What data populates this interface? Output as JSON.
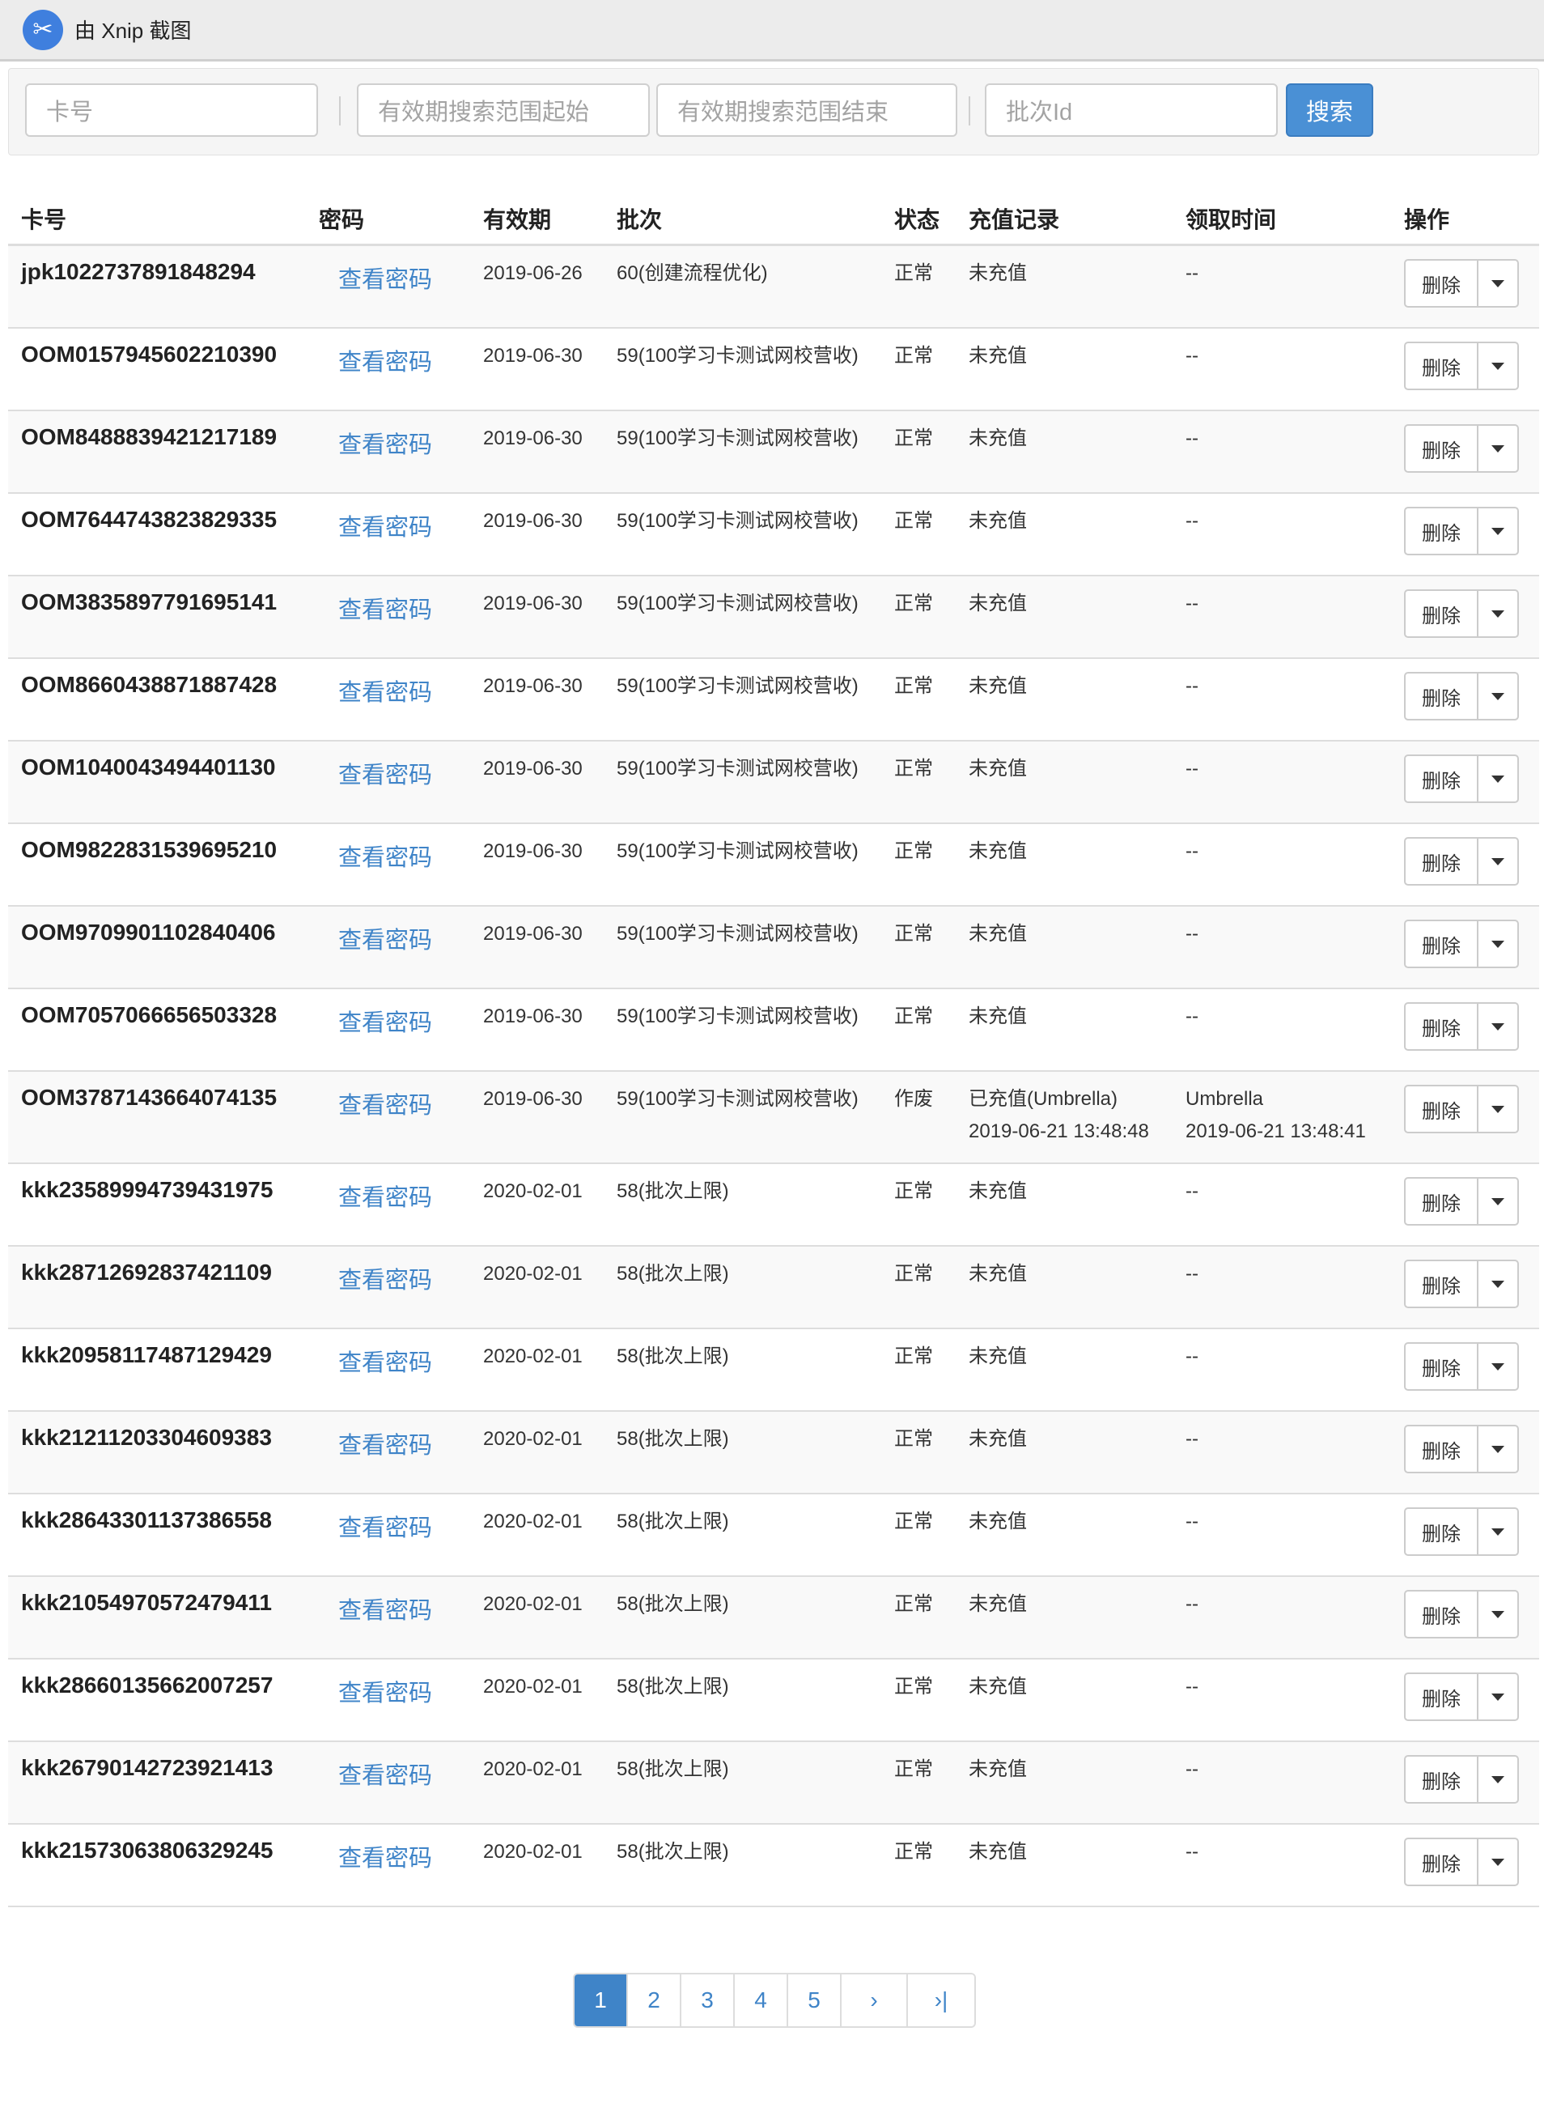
{
  "topbar": {
    "logo_glyph": "✂",
    "title": "由 Xnip 截图"
  },
  "search": {
    "card_placeholder": "卡号",
    "start_placeholder": "有效期搜索范围起始",
    "end_placeholder": "有效期搜索范围结束",
    "batch_placeholder": "批次Id",
    "button_label": "搜索"
  },
  "table": {
    "headers": [
      "卡号",
      "密码",
      "有效期",
      "批次",
      "状态",
      "充值记录",
      "领取时间",
      "操作"
    ],
    "view_password_label": "查看密码",
    "delete_label": "删除",
    "rows": [
      {
        "card": "jpk1022737891848294",
        "expiry": "2019-06-26",
        "batch": "60(创建流程优化)",
        "status": "正常",
        "charge": "未充值",
        "charge_time": "",
        "received": "--",
        "received_time": ""
      },
      {
        "card": "OOM0157945602210390",
        "expiry": "2019-06-30",
        "batch": "59(100学习卡测试网校营收)",
        "status": "正常",
        "charge": "未充值",
        "charge_time": "",
        "received": "--",
        "received_time": ""
      },
      {
        "card": "OOM8488839421217189",
        "expiry": "2019-06-30",
        "batch": "59(100学习卡测试网校营收)",
        "status": "正常",
        "charge": "未充值",
        "charge_time": "",
        "received": "--",
        "received_time": ""
      },
      {
        "card": "OOM7644743823829335",
        "expiry": "2019-06-30",
        "batch": "59(100学习卡测试网校营收)",
        "status": "正常",
        "charge": "未充值",
        "charge_time": "",
        "received": "--",
        "received_time": ""
      },
      {
        "card": "OOM3835897791695141",
        "expiry": "2019-06-30",
        "batch": "59(100学习卡测试网校营收)",
        "status": "正常",
        "charge": "未充值",
        "charge_time": "",
        "received": "--",
        "received_time": ""
      },
      {
        "card": "OOM8660438871887428",
        "expiry": "2019-06-30",
        "batch": "59(100学习卡测试网校营收)",
        "status": "正常",
        "charge": "未充值",
        "charge_time": "",
        "received": "--",
        "received_time": ""
      },
      {
        "card": "OOM1040043494401130",
        "expiry": "2019-06-30",
        "batch": "59(100学习卡测试网校营收)",
        "status": "正常",
        "charge": "未充值",
        "charge_time": "",
        "received": "--",
        "received_time": ""
      },
      {
        "card": "OOM9822831539695210",
        "expiry": "2019-06-30",
        "batch": "59(100学习卡测试网校营收)",
        "status": "正常",
        "charge": "未充值",
        "charge_time": "",
        "received": "--",
        "received_time": ""
      },
      {
        "card": "OOM9709901102840406",
        "expiry": "2019-06-30",
        "batch": "59(100学习卡测试网校营收)",
        "status": "正常",
        "charge": "未充值",
        "charge_time": "",
        "received": "--",
        "received_time": ""
      },
      {
        "card": "OOM7057066656503328",
        "expiry": "2019-06-30",
        "batch": "59(100学习卡测试网校营收)",
        "status": "正常",
        "charge": "未充值",
        "charge_time": "",
        "received": "--",
        "received_time": ""
      },
      {
        "card": "OOM3787143664074135",
        "expiry": "2019-06-30",
        "batch": "59(100学习卡测试网校营收)",
        "status": "作废",
        "charge": "已充值(Umbrella)",
        "charge_time": "2019-06-21 13:48:48",
        "received": "Umbrella",
        "received_time": "2019-06-21 13:48:41"
      },
      {
        "card": "kkk23589994739431975",
        "expiry": "2020-02-01",
        "batch": "58(批次上限)",
        "status": "正常",
        "charge": "未充值",
        "charge_time": "",
        "received": "--",
        "received_time": ""
      },
      {
        "card": "kkk28712692837421109",
        "expiry": "2020-02-01",
        "batch": "58(批次上限)",
        "status": "正常",
        "charge": "未充值",
        "charge_time": "",
        "received": "--",
        "received_time": ""
      },
      {
        "card": "kkk20958117487129429",
        "expiry": "2020-02-01",
        "batch": "58(批次上限)",
        "status": "正常",
        "charge": "未充值",
        "charge_time": "",
        "received": "--",
        "received_time": ""
      },
      {
        "card": "kkk21211203304609383",
        "expiry": "2020-02-01",
        "batch": "58(批次上限)",
        "status": "正常",
        "charge": "未充值",
        "charge_time": "",
        "received": "--",
        "received_time": ""
      },
      {
        "card": "kkk28643301137386558",
        "expiry": "2020-02-01",
        "batch": "58(批次上限)",
        "status": "正常",
        "charge": "未充值",
        "charge_time": "",
        "received": "--",
        "received_time": ""
      },
      {
        "card": "kkk21054970572479411",
        "expiry": "2020-02-01",
        "batch": "58(批次上限)",
        "status": "正常",
        "charge": "未充值",
        "charge_time": "",
        "received": "--",
        "received_time": ""
      },
      {
        "card": "kkk28660135662007257",
        "expiry": "2020-02-01",
        "batch": "58(批次上限)",
        "status": "正常",
        "charge": "未充值",
        "charge_time": "",
        "received": "--",
        "received_time": ""
      },
      {
        "card": "kkk26790142723921413",
        "expiry": "2020-02-01",
        "batch": "58(批次上限)",
        "status": "正常",
        "charge": "未充值",
        "charge_time": "",
        "received": "--",
        "received_time": ""
      },
      {
        "card": "kkk21573063806329245",
        "expiry": "2020-02-01",
        "batch": "58(批次上限)",
        "status": "正常",
        "charge": "未充值",
        "charge_time": "",
        "received": "--",
        "received_time": ""
      }
    ]
  },
  "pagination": {
    "pages": [
      "1",
      "2",
      "3",
      "4",
      "5"
    ],
    "current": "1",
    "next_label": "›",
    "last_label": "›|"
  },
  "colors": {
    "link": "#3f84c8",
    "primary": "#4a90d5",
    "border": "#dddddd",
    "stripe": "#f9f9f9"
  },
  "icons": {
    "logo": "xnip-scissors-icon",
    "dropdown": "caret-down-icon"
  }
}
